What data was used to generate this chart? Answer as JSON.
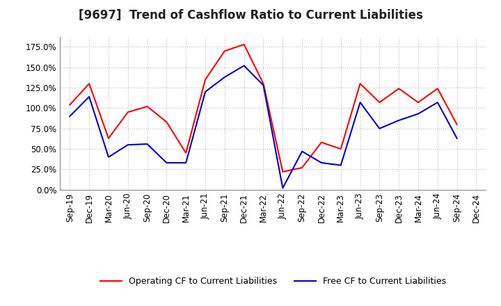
{
  "title": "[9697]  Trend of Cashflow Ratio to Current Liabilities",
  "x_labels": [
    "Sep-19",
    "Dec-19",
    "Mar-20",
    "Jun-20",
    "Sep-20",
    "Dec-20",
    "Mar-21",
    "Jun-21",
    "Sep-21",
    "Dec-21",
    "Mar-22",
    "Jun-22",
    "Sep-22",
    "Dec-22",
    "Mar-23",
    "Jun-23",
    "Sep-23",
    "Dec-23",
    "Mar-24",
    "Jun-24",
    "Sep-24",
    "Dec-24"
  ],
  "operating_cf": [
    1.04,
    1.3,
    0.63,
    0.95,
    1.02,
    0.83,
    0.45,
    1.35,
    1.7,
    1.78,
    1.3,
    0.22,
    0.27,
    0.58,
    0.5,
    1.3,
    1.07,
    1.24,
    1.07,
    1.24,
    0.8,
    null
  ],
  "free_cf": [
    0.9,
    1.14,
    0.4,
    0.55,
    0.56,
    0.33,
    0.33,
    1.2,
    1.38,
    1.52,
    1.28,
    0.02,
    0.47,
    0.33,
    0.3,
    1.07,
    0.75,
    0.85,
    0.93,
    1.07,
    0.63,
    null
  ],
  "ylim": [
    0.0,
    1.875
  ],
  "yticks": [
    0.0,
    0.25,
    0.5,
    0.75,
    1.0,
    1.25,
    1.5,
    1.75
  ],
  "operating_color": "#ff0000",
  "free_color": "#0000cc",
  "background_color": "#ffffff",
  "plot_bg_color": "#ffffff",
  "grid_color": "#aaaaaa",
  "title_fontsize": 12,
  "tick_fontsize": 8.5,
  "legend_operating": "Operating CF to Current Liabilities",
  "legend_free": "Free CF to Current Liabilities"
}
